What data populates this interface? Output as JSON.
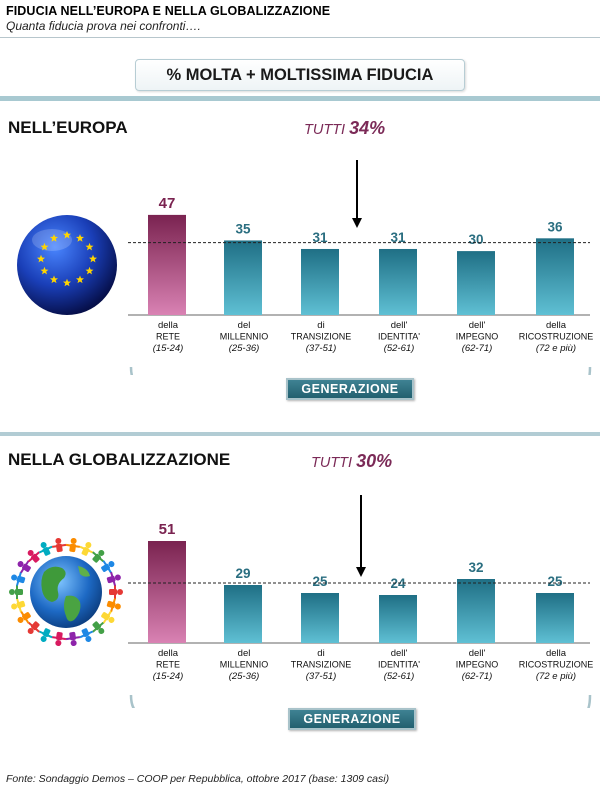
{
  "header": {
    "title": "FIDUCIA NELL’EUROPA E NELLA GLOBALIZZAZIONE",
    "subtitle": "Quanta fiducia prova nei confronti…."
  },
  "measure_label": "% MOLTA + MOLTISSIMA FIDUCIA",
  "group_label": "GENERAZIONE",
  "footer": "Fonte: Sondaggio Demos – COOP per Repubblica, ottobre 2017 (base: 1309 casi)",
  "colors": {
    "highlight_bar": "#8c2f60",
    "bar": "#2b8299",
    "tutti_text": "#7b2a57",
    "label_teal": "#2a6e80"
  },
  "chart_data": [
    {
      "type": "bar",
      "title": "NELL’EUROPA",
      "tutti_label": "TUTTI",
      "tutti_value": "34%",
      "reference_value": 34,
      "categories": [
        {
          "line1": "della",
          "line2": "RETE",
          "range": "(15-24)"
        },
        {
          "line1": "del",
          "line2": "MILLENNIO",
          "range": "(25-36)"
        },
        {
          "line1": "di",
          "line2": "TRANSIZIONE",
          "range": "(37-51)"
        },
        {
          "line1": "dell'",
          "line2": "IDENTITA'",
          "range": "(52-61)"
        },
        {
          "line1": "dell'",
          "line2": "IMPEGNO",
          "range": "(62-71)"
        },
        {
          "line1": "della",
          "line2": "RICOSTRUZIONE",
          "range": "(72 e più)"
        }
      ],
      "values": [
        47,
        35,
        31,
        31,
        30,
        36
      ],
      "highlight_index": 0
    },
    {
      "type": "bar",
      "title": "NELLA GLOBALIZZAZIONE",
      "tutti_label": "TUTTI",
      "tutti_value": "30%",
      "reference_value": 30,
      "categories": [
        {
          "line1": "della",
          "line2": "RETE",
          "range": "(15-24)"
        },
        {
          "line1": "del",
          "line2": "MILLENNIO",
          "range": "(25-36)"
        },
        {
          "line1": "di",
          "line2": "TRANSIZIONE",
          "range": "(37-51)"
        },
        {
          "line1": "dell'",
          "line2": "IDENTITA'",
          "range": "(52-61)"
        },
        {
          "line1": "dell'",
          "line2": "IMPEGNO",
          "range": "(62-71)"
        },
        {
          "line1": "della",
          "line2": "RICOSTRUZIONE",
          "range": "(72 e più)"
        }
      ],
      "values": [
        51,
        29,
        25,
        24,
        32,
        25
      ],
      "highlight_index": 0
    }
  ]
}
